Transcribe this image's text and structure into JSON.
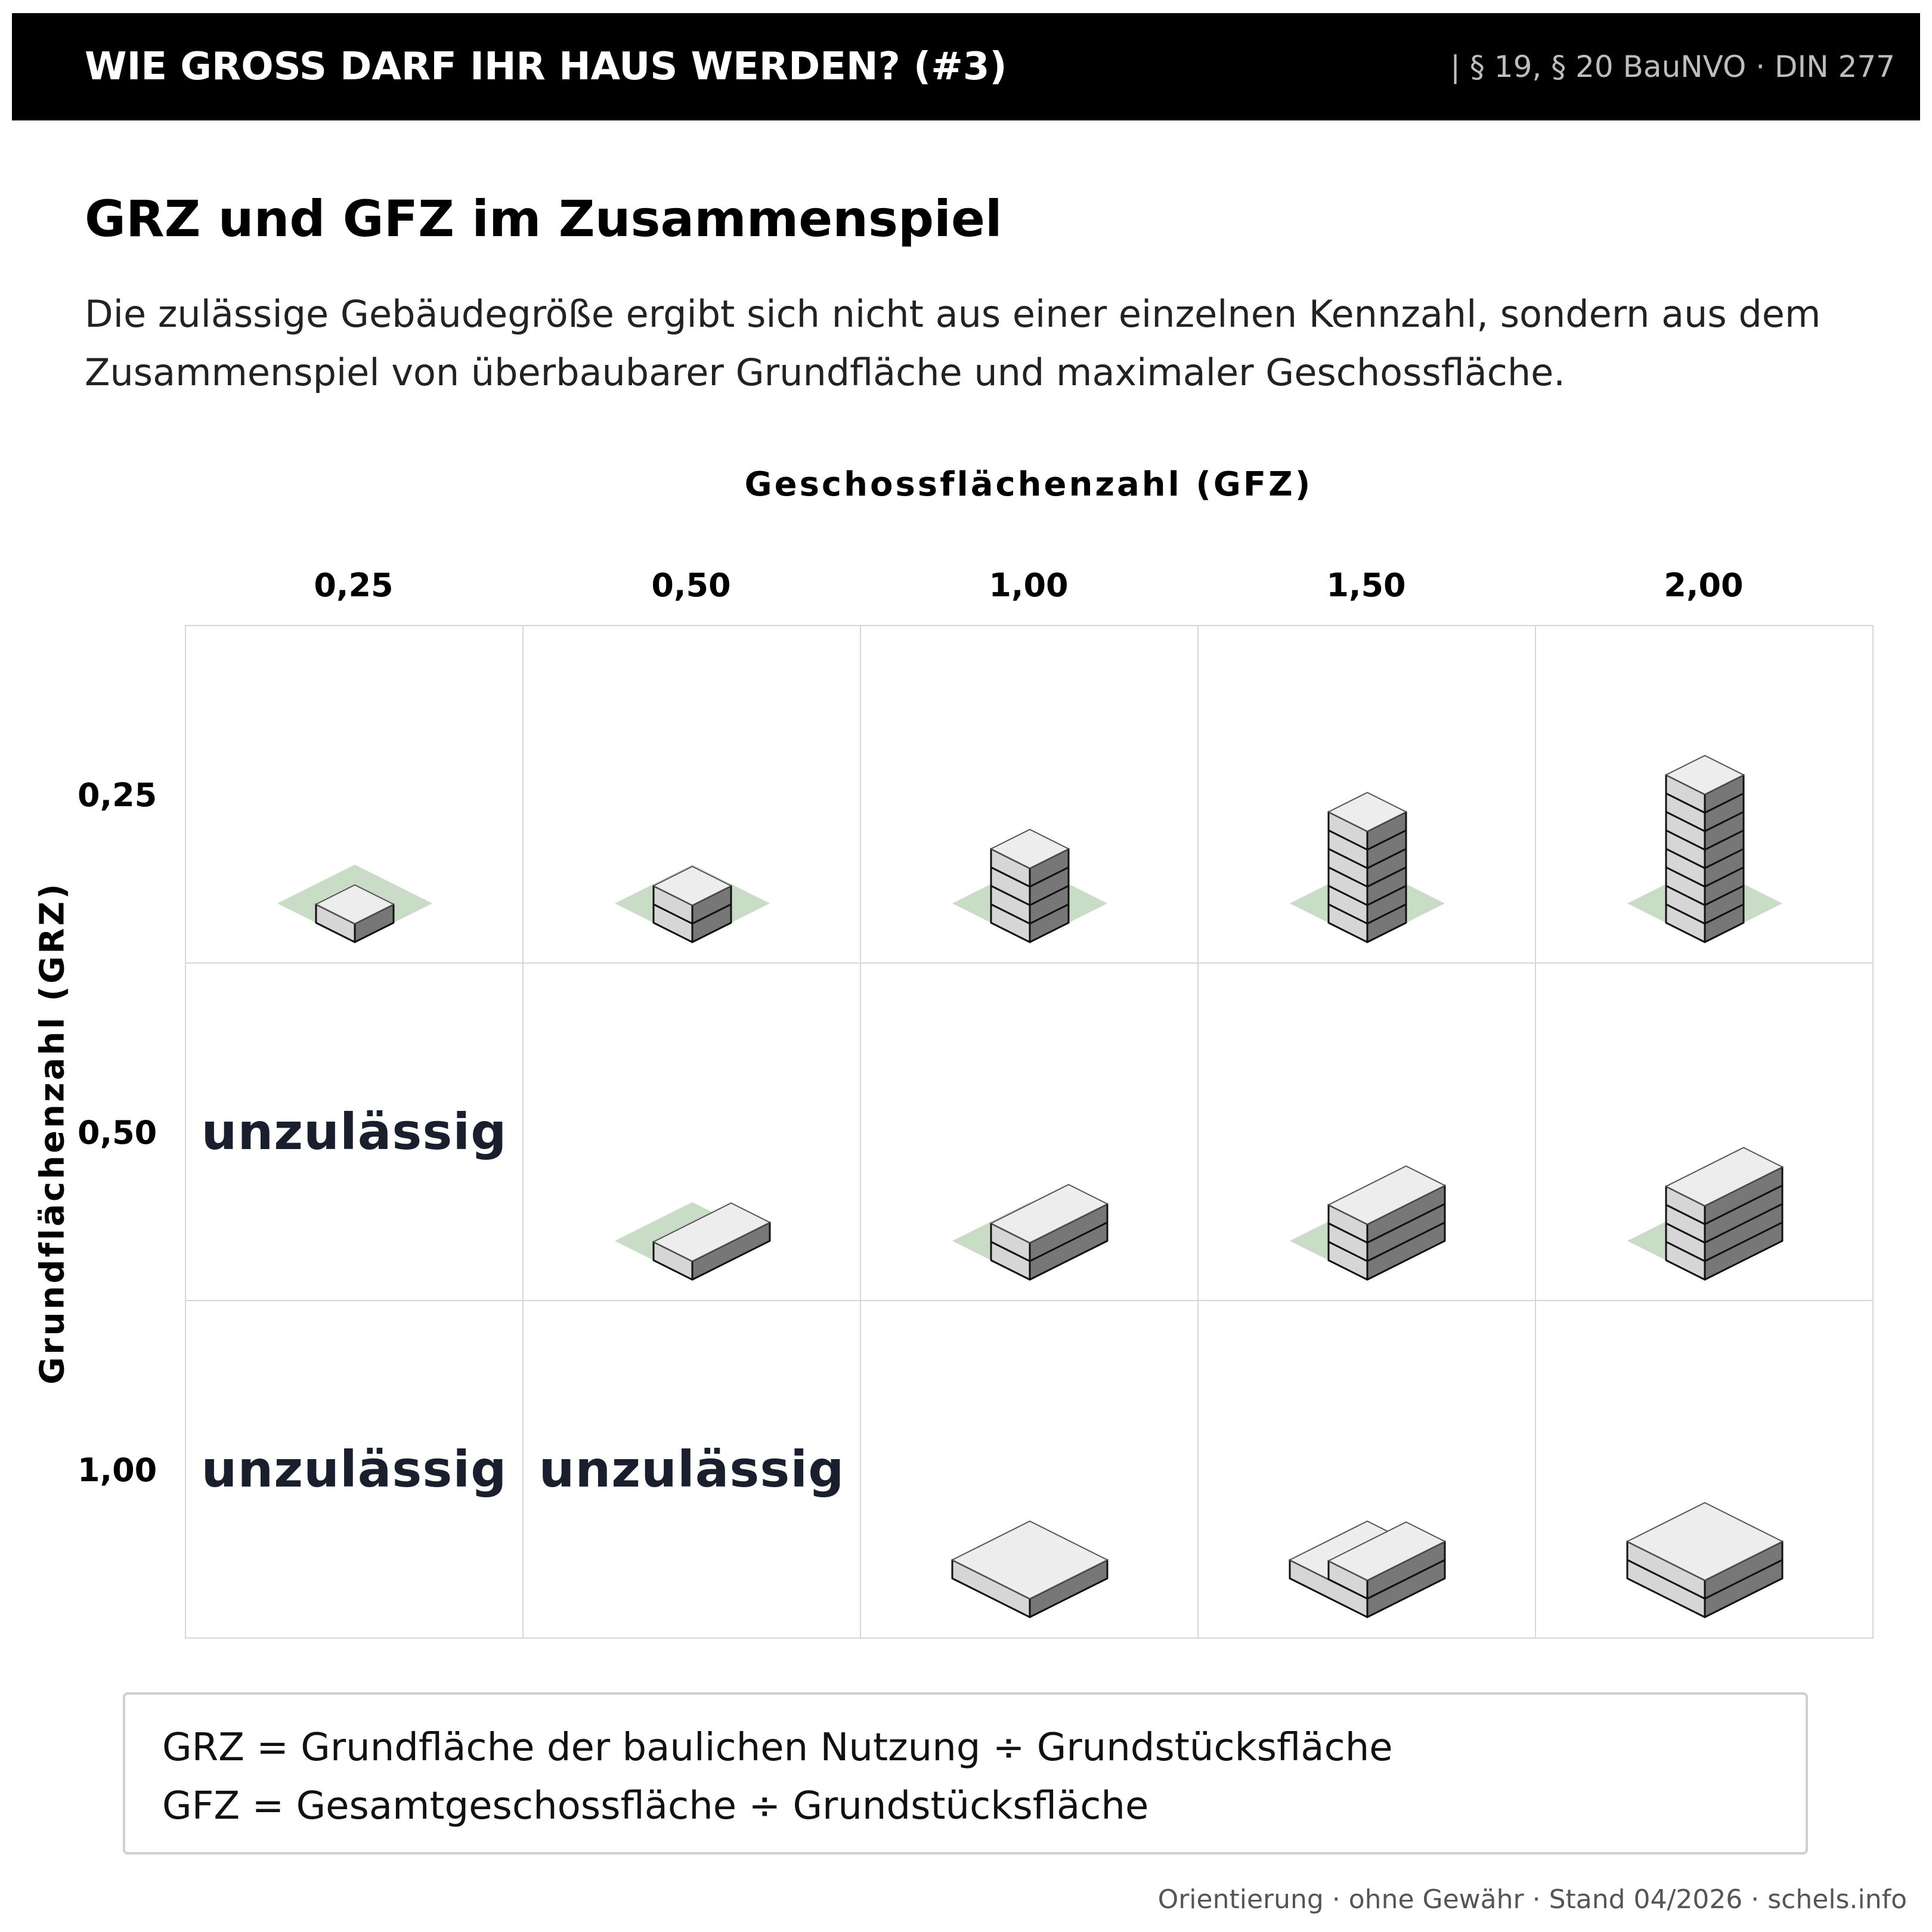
{
  "header": {
    "title": "WIE GROSS DARF IHR HAUS WERDEN? (#3)",
    "reference": "| § 19, § 20 BauNVO · DIN 277"
  },
  "section": {
    "title": "GRZ und GFZ im Zusammenspiel",
    "intro_lines": [
      "Die zulässige Gebäudegröße ergibt sich nicht aus einer einzelnen Kennzahl, sondern aus dem",
      "Zusammenspiel von überbaubarer Grundfläche und maximaler Geschossfläche."
    ]
  },
  "chart_data": {
    "type": "table",
    "x_axis_label": "Geschossflächenzahl (GFZ)",
    "y_axis_label": "Grundflächenzahl (GRZ)",
    "columns": [
      "0,25",
      "0,50",
      "1,00",
      "1,50",
      "2,00"
    ],
    "rows": [
      "0,25",
      "0,50",
      "1,00"
    ],
    "cells": [
      [
        {
          "allowed": true,
          "footprint": "quarter",
          "floors": 1
        },
        {
          "allowed": true,
          "footprint": "quarter",
          "floors": 2
        },
        {
          "allowed": true,
          "footprint": "quarter",
          "floors": 4
        },
        {
          "allowed": true,
          "footprint": "quarter",
          "floors": 6
        },
        {
          "allowed": true,
          "footprint": "quarter",
          "floors": 8
        }
      ],
      [
        {
          "allowed": false,
          "label": "unzulässig"
        },
        {
          "allowed": true,
          "footprint": "half",
          "floors": 1
        },
        {
          "allowed": true,
          "footprint": "half",
          "floors": 2
        },
        {
          "allowed": true,
          "footprint": "half",
          "floors": 3
        },
        {
          "allowed": true,
          "footprint": "half",
          "floors": 4
        }
      ],
      [
        {
          "allowed": false,
          "label": "unzulässig"
        },
        {
          "allowed": false,
          "label": "unzulässig"
        },
        {
          "allowed": true,
          "footprint": "full",
          "floors": 1
        },
        {
          "allowed": true,
          "footprint": "full_plus_half",
          "floors": 2
        },
        {
          "allowed": true,
          "footprint": "full",
          "floors": 2
        }
      ]
    ]
  },
  "legend": {
    "lines": [
      "GRZ = Grundfläche der baulichen Nutzung ÷ Grundstücksfläche",
      "GFZ = Gesamtgeschossfläche ÷ Grundstücksfläche"
    ]
  },
  "footer": "Orientierung · ohne Gewähr · Stand 04/2026 · schels.info",
  "colors": {
    "plot": "#c8dcc6",
    "roof": "#ededed",
    "left_face": "#d6d6d6",
    "right_face": "#777777",
    "outline": "#111111",
    "grid_line": "#d7d7d7",
    "header_bg": "#000000"
  }
}
